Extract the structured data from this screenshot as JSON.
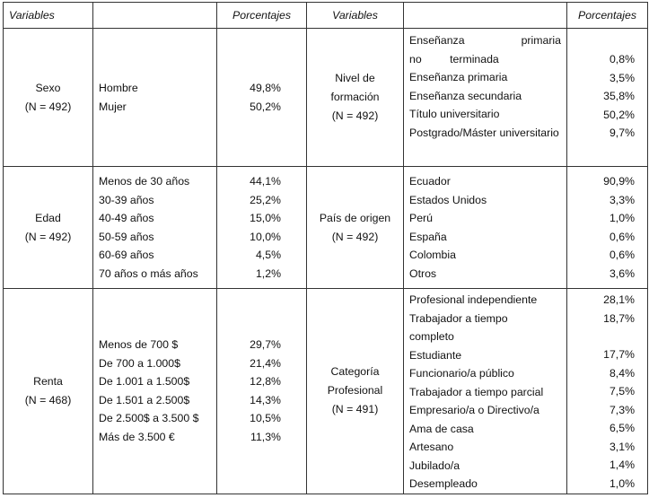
{
  "headers": {
    "variables_left": "Variables",
    "categories_left": "",
    "percent_left": "Porcentajes",
    "variables_right": "Variables",
    "categories_right": "",
    "percent_right": "Porcentajes"
  },
  "rows": [
    {
      "left": {
        "variable": "Sexo",
        "n": "(N = 492)",
        "items": [
          {
            "label": "Hombre",
            "value": "49,8%"
          },
          {
            "label": "Mujer",
            "value": "50,2%"
          }
        ]
      },
      "right": {
        "variable_line1": "Nivel de",
        "variable_line2": "formación",
        "n": "(N = 492)",
        "items": [
          {
            "label": "Enseñanza primaria no terminada",
            "value": "0,8%"
          },
          {
            "label": "Enseñanza primaria",
            "value": "3,5%"
          },
          {
            "label": "Enseñanza secundaria",
            "value": "35,8%"
          },
          {
            "label": "Título universitario",
            "value": "50,2%"
          },
          {
            "label": "Postgrado/Máster universitario",
            "value": "9,7%"
          }
        ]
      }
    },
    {
      "left": {
        "variable": "Edad",
        "n": "(N = 492)",
        "items": [
          {
            "label": "Menos de 30 años",
            "value": "44,1%"
          },
          {
            "label": "30-39 años",
            "value": "25,2%"
          },
          {
            "label": "40-49 años",
            "value": "15,0%"
          },
          {
            "label": "50-59 años",
            "value": "10,0%"
          },
          {
            "label": "60-69 años",
            "value": "4,5%"
          },
          {
            "label": "70 años o más años",
            "value": "1,2%"
          }
        ]
      },
      "right": {
        "variable": "País de origen",
        "n": "(N = 492)",
        "items": [
          {
            "label": "Ecuador",
            "value": "90,9%"
          },
          {
            "label": "Estados Unidos",
            "value": "3,3%"
          },
          {
            "label": "Perú",
            "value": "1,0%"
          },
          {
            "label": "España",
            "value": "0,6%"
          },
          {
            "label": "Colombia",
            "value": "0,6%"
          },
          {
            "label": "Otros",
            "value": "3,6%"
          }
        ]
      }
    },
    {
      "left": {
        "variable": "Renta",
        "n": "(N = 468)",
        "items": [
          {
            "label": "Menos de 700 $",
            "value": "29,7%"
          },
          {
            "label": "De 700 a 1.000$",
            "value": "21,4%"
          },
          {
            "label": "De 1.001 a 1.500$",
            "value": "12,8%"
          },
          {
            "label": "De 1.501 a 2.500$",
            "value": "14,3%"
          },
          {
            "label": "De 2.500$ a 3.500 $",
            "value": "10,5%"
          },
          {
            "label": "Más de 3.500 €",
            "value": "11,3%"
          }
        ]
      },
      "right": {
        "variable_line1": "Categoría",
        "variable_line2": "Profesional",
        "n": "(N = 491)",
        "items": [
          {
            "label": "Profesional independiente",
            "value": "28,1%"
          },
          {
            "label": "Trabajador a tiempo completo",
            "value": "18,7%"
          },
          {
            "label": "Estudiante",
            "value": "17,7%"
          },
          {
            "label": "Funcionario/a público",
            "value": "8,4%"
          },
          {
            "label": "Trabajador a tiempo parcial",
            "value": "7,5%"
          },
          {
            "label": "Empresario/a o Directivo/a",
            "value": "7,3%"
          },
          {
            "label": "Ama de casa",
            "value": "6,5%"
          },
          {
            "label": "Artesano",
            "value": "3,1%"
          },
          {
            "label": "Jubilado/a",
            "value": "1,4%"
          },
          {
            "label": "Desempleado",
            "value": "1,0%"
          }
        ]
      }
    }
  ]
}
